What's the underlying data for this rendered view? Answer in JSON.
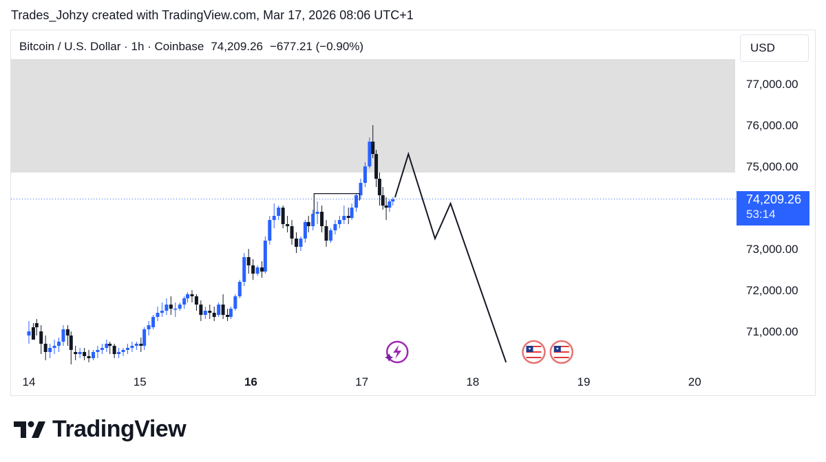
{
  "header": {
    "credit": "Trades_Johzy created with TradingView.com, Mar 17, 2026 08:06 UTC+1"
  },
  "legend": {
    "symbol": "Bitcoin / U.S. Dollar · 1h · Coinbase",
    "price": "74,209.26",
    "change": "−677.21 (−0.90%)"
  },
  "currency_button": "USD",
  "price_tag": {
    "price": "74,209.26",
    "countdown": "53:14"
  },
  "brand": {
    "name": "TradingView"
  },
  "colors": {
    "up": "#2962ff",
    "down": "#131722",
    "zone": "#e0e0e0",
    "grid": "#e0e3eb"
  },
  "chart_data": {
    "type": "candlestick",
    "y_axis": {
      "ticks": [
        71000,
        72000,
        73000,
        74000,
        75000,
        76000,
        77000
      ],
      "labels": [
        "71,000.00",
        "72,000.00",
        "73,000.00",
        "",
        "75,000.00",
        "76,000.00",
        "77,000.00"
      ]
    },
    "x_axis": {
      "ticks": [
        14,
        15,
        16,
        17,
        18,
        19,
        20
      ],
      "labels": [
        "14",
        "15",
        "16",
        "17",
        "18",
        "19",
        "20"
      ],
      "bold": [
        "16"
      ]
    },
    "last_price": 74209.26,
    "resistance_zone": {
      "from": 74850,
      "to": 77600
    },
    "range_box": {
      "from_day": 16.57,
      "to_day": 16.98,
      "price": 74340
    },
    "projection_path": [
      {
        "day": 17.3,
        "price": 74250
      },
      {
        "day": 17.42,
        "price": 75300
      },
      {
        "day": 17.66,
        "price": 73250
      },
      {
        "day": 17.8,
        "price": 74100
      },
      {
        "day": 18.3,
        "price": 70250
      }
    ],
    "event_icons": [
      {
        "type": "lightning-icon",
        "day": 17.32
      },
      {
        "type": "us-flag-icon",
        "day": 18.55
      },
      {
        "type": "us-flag-icon",
        "day": 18.8
      }
    ],
    "candles": [
      [
        14.0,
        70900,
        71250,
        71000,
        70700
      ],
      [
        14.04,
        71100,
        71200,
        70800,
        71000
      ],
      [
        14.07,
        71200,
        71300,
        71100,
        70900
      ],
      [
        14.11,
        71000,
        71150,
        70700,
        70450
      ],
      [
        14.15,
        70700,
        70900,
        70500,
        70300
      ],
      [
        14.19,
        70500,
        70700,
        70600,
        70350
      ],
      [
        14.23,
        70600,
        70800,
        70650,
        70450
      ],
      [
        14.27,
        70650,
        70850,
        70750,
        70500
      ],
      [
        14.31,
        70750,
        71150,
        71050,
        70650
      ],
      [
        14.35,
        71050,
        71150,
        70900,
        70650
      ],
      [
        14.38,
        70900,
        71000,
        70550,
        70200
      ],
      [
        14.42,
        70500,
        70650,
        70450,
        70300
      ],
      [
        14.46,
        70450,
        70600,
        70500,
        70350
      ],
      [
        14.5,
        70500,
        70600,
        70400,
        70300
      ],
      [
        14.54,
        70400,
        70550,
        70350,
        70250
      ],
      [
        14.58,
        70350,
        70550,
        70500,
        70300
      ],
      [
        14.62,
        70500,
        70650,
        70550,
        70350
      ],
      [
        14.66,
        70550,
        70700,
        70600,
        70450
      ],
      [
        14.7,
        70600,
        70800,
        70700,
        70500
      ],
      [
        14.73,
        70700,
        70750,
        70650,
        70450
      ],
      [
        14.77,
        70650,
        70700,
        70450,
        70350
      ],
      [
        14.81,
        70450,
        70600,
        70500,
        70350
      ],
      [
        14.85,
        70500,
        70600,
        70550,
        70400
      ],
      [
        14.89,
        70550,
        70700,
        70600,
        70450
      ],
      [
        14.93,
        70600,
        70750,
        70650,
        70500
      ],
      [
        14.97,
        70650,
        70750,
        70700,
        70550
      ],
      [
        15.01,
        70700,
        70850,
        70650,
        70500
      ],
      [
        15.04,
        70650,
        71100,
        71050,
        70550
      ],
      [
        15.08,
        71050,
        71250,
        71150,
        70900
      ],
      [
        15.12,
        71100,
        71400,
        71350,
        71050
      ],
      [
        15.16,
        71350,
        71600,
        71450,
        71250
      ],
      [
        15.2,
        71450,
        71700,
        71500,
        71350
      ],
      [
        15.24,
        71500,
        71800,
        71650,
        71400
      ],
      [
        15.28,
        71650,
        71850,
        71550,
        71400
      ],
      [
        15.32,
        71550,
        71700,
        71550,
        71350
      ],
      [
        15.36,
        71550,
        71700,
        71650,
        71500
      ],
      [
        15.4,
        71650,
        71850,
        71800,
        71550
      ],
      [
        15.43,
        71800,
        71950,
        71900,
        71700
      ],
      [
        15.47,
        71900,
        72000,
        71850,
        71700
      ],
      [
        15.51,
        71850,
        71900,
        71650,
        71500
      ],
      [
        15.55,
        71650,
        71750,
        71400,
        71250
      ],
      [
        15.59,
        71400,
        71600,
        71500,
        71300
      ],
      [
        15.63,
        71500,
        71650,
        71450,
        71300
      ],
      [
        15.67,
        71450,
        71600,
        71350,
        71250
      ],
      [
        15.71,
        71400,
        71700,
        71650,
        71350
      ],
      [
        15.75,
        71650,
        71900,
        71400,
        71300
      ],
      [
        15.79,
        71400,
        71550,
        71350,
        71250
      ],
      [
        15.82,
        71350,
        71600,
        71550,
        71300
      ],
      [
        15.86,
        71550,
        71900,
        71850,
        71500
      ],
      [
        15.9,
        71850,
        72250,
        72200,
        71800
      ],
      [
        15.94,
        72200,
        72900,
        72800,
        72100
      ],
      [
        15.98,
        72800,
        73000,
        72600,
        72400
      ],
      [
        16.02,
        72600,
        72750,
        72400,
        72250
      ],
      [
        16.06,
        72400,
        72600,
        72550,
        72350
      ],
      [
        16.1,
        72550,
        72700,
        72450,
        72300
      ],
      [
        16.13,
        72450,
        73300,
        73200,
        72400
      ],
      [
        16.17,
        73200,
        73800,
        73700,
        73100
      ],
      [
        16.21,
        73700,
        74100,
        73800,
        73500
      ],
      [
        16.25,
        73800,
        74050,
        74000,
        73700
      ],
      [
        16.29,
        74000,
        74050,
        73600,
        73500
      ],
      [
        16.33,
        73600,
        73800,
        73550,
        73400
      ],
      [
        16.37,
        73550,
        73700,
        73250,
        73100
      ],
      [
        16.41,
        73250,
        73400,
        73050,
        72900
      ],
      [
        16.45,
        73050,
        73300,
        73250,
        72950
      ],
      [
        16.49,
        73250,
        73700,
        73650,
        73150
      ],
      [
        16.52,
        73650,
        73800,
        73550,
        73400
      ],
      [
        16.56,
        73550,
        73950,
        73850,
        73450
      ],
      [
        16.6,
        73850,
        74150,
        73900,
        73600
      ],
      [
        16.64,
        73900,
        74050,
        73550,
        73400
      ],
      [
        16.68,
        73550,
        73700,
        73200,
        73050
      ],
      [
        16.72,
        73200,
        73500,
        73450,
        73150
      ],
      [
        16.76,
        73450,
        73700,
        73600,
        73350
      ],
      [
        16.8,
        73600,
        73800,
        73700,
        73500
      ],
      [
        16.84,
        73700,
        74050,
        73800,
        73600
      ],
      [
        16.88,
        73800,
        74000,
        73750,
        73600
      ],
      [
        16.91,
        73750,
        74100,
        74000,
        73700
      ],
      [
        16.95,
        74000,
        74350,
        74300,
        73900
      ],
      [
        16.99,
        74300,
        74700,
        74600,
        74200
      ],
      [
        17.03,
        74600,
        75100,
        75000,
        74500
      ],
      [
        17.07,
        75000,
        75700,
        75600,
        74950
      ],
      [
        17.1,
        75600,
        76000,
        75300,
        75200
      ],
      [
        17.13,
        75300,
        75400,
        74700,
        74500
      ],
      [
        17.16,
        74700,
        74850,
        74300,
        74050
      ],
      [
        17.19,
        74300,
        74500,
        74050,
        73950
      ],
      [
        17.22,
        74050,
        74250,
        74000,
        73700
      ],
      [
        17.25,
        74000,
        74200,
        74150,
        73900
      ],
      [
        17.28,
        74150,
        74250,
        74200,
        74050
      ]
    ]
  }
}
